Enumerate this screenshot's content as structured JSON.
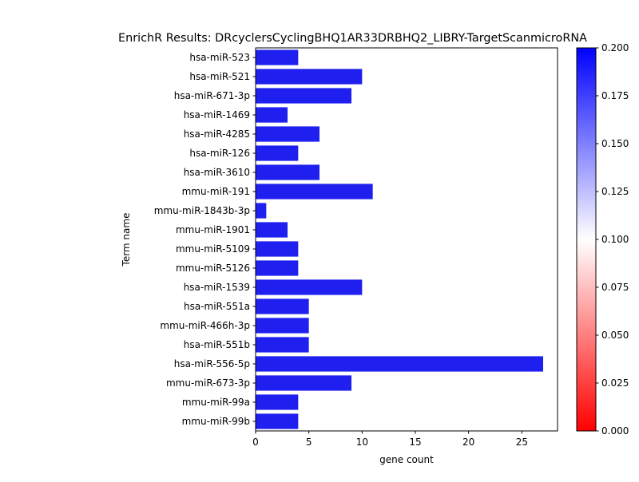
{
  "chart_data": {
    "type": "bar",
    "orientation": "horizontal",
    "title": "EnrichR Results: DRcyclersCyclingBHQ1AR33DRBHQ2_LIBRY-TargetScanmicroRNA",
    "xlabel": "gene count",
    "ylabel": "Term name",
    "xlim": [
      0,
      28.35
    ],
    "xticks": [
      "0",
      "5",
      "10",
      "15",
      "20",
      "25"
    ],
    "xtick_values": [
      0,
      5,
      10,
      15,
      20,
      25
    ],
    "categories": [
      "hsa-miR-523",
      "hsa-miR-521",
      "hsa-miR-671-3p",
      "hsa-miR-1469",
      "hsa-miR-4285",
      "hsa-miR-126",
      "hsa-miR-3610",
      "mmu-miR-191",
      "mmu-miR-1843b-3p",
      "mmu-miR-1901",
      "mmu-miR-5109",
      "mmu-miR-5126",
      "hsa-miR-1539",
      "hsa-miR-551a",
      "mmu-miR-466h-3p",
      "hsa-miR-551b",
      "hsa-miR-556-5p",
      "mmu-miR-673-3p",
      "mmu-miR-99a",
      "mmu-miR-99b"
    ],
    "values": [
      4,
      10,
      9,
      3,
      6,
      4,
      6,
      11,
      1,
      3,
      4,
      4,
      10,
      5,
      5,
      5,
      27,
      9,
      4,
      4
    ],
    "bar_color": "#1f1fef",
    "colorbar": {
      "colormap": "bwr_r",
      "range": [
        0.0,
        0.2
      ],
      "ticks": [
        "0.000",
        "0.025",
        "0.050",
        "0.075",
        "0.100",
        "0.125",
        "0.150",
        "0.175",
        "0.200"
      ],
      "tick_values": [
        0.0,
        0.025,
        0.05,
        0.075,
        0.1,
        0.125,
        0.15,
        0.175,
        0.2
      ],
      "color_low": "#ff0000",
      "color_mid": "#ffffff",
      "color_high": "#0000ff"
    },
    "grid": false,
    "legend": "none"
  }
}
